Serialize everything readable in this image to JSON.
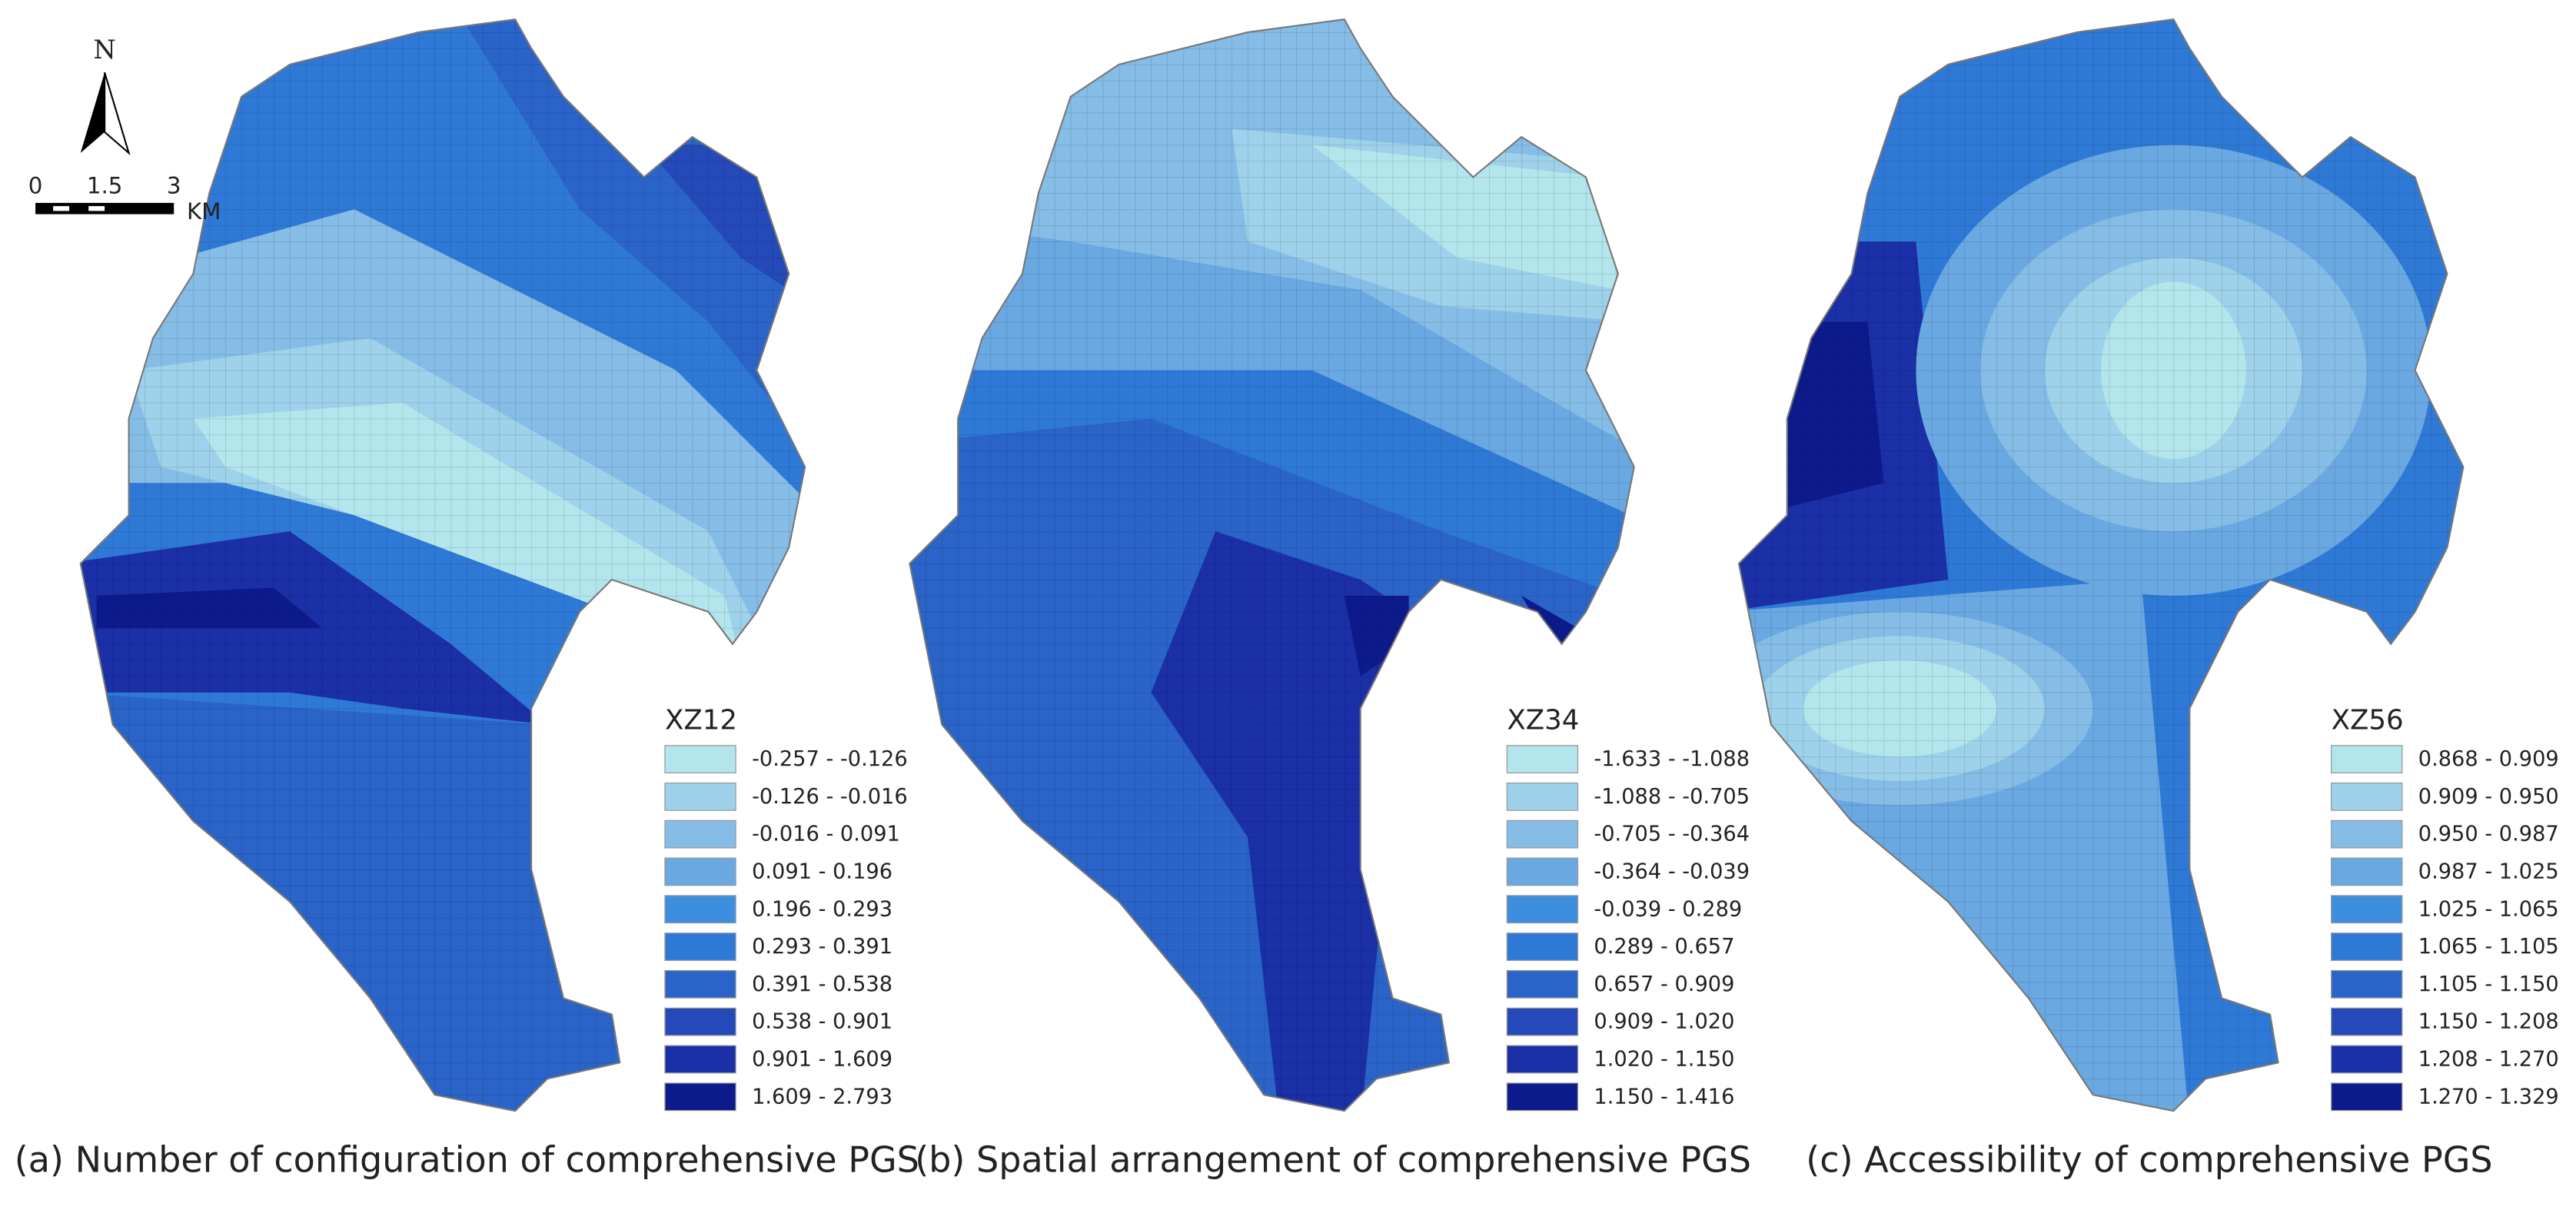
{
  "north": "N",
  "scale": {
    "ticks": [
      "0",
      "1.5",
      "3"
    ],
    "unit": "KM"
  },
  "panels": [
    {
      "caption": "(a) Number of configuration of comprehensive PGS",
      "legend_title": "XZ12",
      "classes": [
        {
          "label": "-0.257 - -0.126",
          "color": "#b3e6ec"
        },
        {
          "label": "-0.126 - -0.016",
          "color": "#9dd2ea"
        },
        {
          "label": "-0.016 - 0.091",
          "color": "#85bde6"
        },
        {
          "label": "0.091 - 0.196",
          "color": "#6aa8e2"
        },
        {
          "label": "0.196 - 0.293",
          "color": "#3e8ee0"
        },
        {
          "label": "0.293 - 0.391",
          "color": "#2f79d6"
        },
        {
          "label": "0.391 - 0.538",
          "color": "#2a64c8"
        },
        {
          "label": "0.538 - 0.901",
          "color": "#2449b8"
        },
        {
          "label": "0.901 - 1.609",
          "color": "#1b2fa6"
        },
        {
          "label": "1.609 - 2.793",
          "color": "#0d1a8c"
        }
      ]
    },
    {
      "caption": "(b) Spatial arrangement of comprehensive PGS",
      "legend_title": "XZ34",
      "classes": [
        {
          "label": "-1.633 - -1.088",
          "color": "#b3e6ec"
        },
        {
          "label": "-1.088 - -0.705",
          "color": "#9dd2ea"
        },
        {
          "label": "-0.705 - -0.364",
          "color": "#85bde6"
        },
        {
          "label": "-0.364 - -0.039",
          "color": "#6aa8e2"
        },
        {
          "label": "-0.039 - 0.289",
          "color": "#3e8ee0"
        },
        {
          "label": "0.289 - 0.657",
          "color": "#2f79d6"
        },
        {
          "label": "0.657 - 0.909",
          "color": "#2a64c8"
        },
        {
          "label": "0.909 - 1.020",
          "color": "#2449b8"
        },
        {
          "label": "1.020 - 1.150",
          "color": "#1b2fa6"
        },
        {
          "label": "1.150 - 1.416",
          "color": "#0d1a8c"
        }
      ]
    },
    {
      "caption": "(c) Accessibility of comprehensive PGS",
      "legend_title": "XZ56",
      "classes": [
        {
          "label": "0.868 - 0.909",
          "color": "#b3e6ec"
        },
        {
          "label": "0.909 - 0.950",
          "color": "#9dd2ea"
        },
        {
          "label": "0.950 - 0.987",
          "color": "#85bde6"
        },
        {
          "label": "0.987 - 1.025",
          "color": "#6aa8e2"
        },
        {
          "label": "1.025 - 1.065",
          "color": "#3e8ee0"
        },
        {
          "label": "1.065 - 1.105",
          "color": "#2f79d6"
        },
        {
          "label": "1.105 - 1.150",
          "color": "#2a64c8"
        },
        {
          "label": "1.150 - 1.208",
          "color": "#2449b8"
        },
        {
          "label": "1.208 - 1.270",
          "color": "#1b2fa6"
        },
        {
          "label": "1.270 - 1.329",
          "color": "#0d1a8c"
        }
      ]
    }
  ]
}
